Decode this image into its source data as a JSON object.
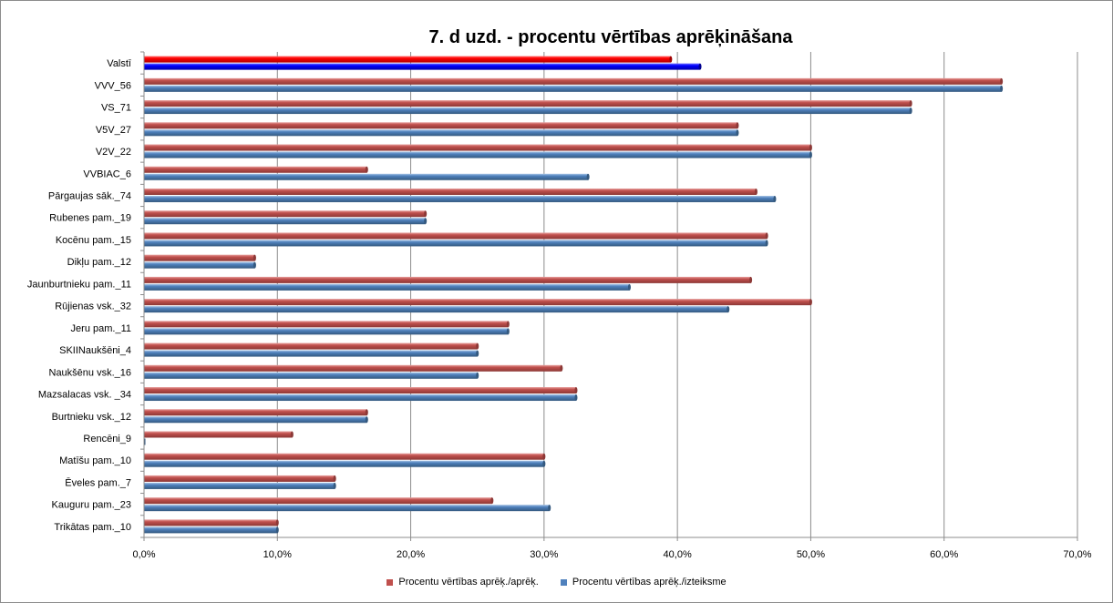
{
  "chart_data": {
    "type": "bar",
    "orientation": "horizontal",
    "title": "7. d uzd. - procentu vērtības aprēķināšana",
    "xlabel": "",
    "ylabel": "",
    "xlim": [
      0,
      70
    ],
    "x_ticks": [
      "0,0%",
      "10,0%",
      "20,0%",
      "30,0%",
      "40,0%",
      "50,0%",
      "60,0%",
      "70,0%"
    ],
    "grid": "vertical",
    "legend_position": "bottom",
    "categories": [
      "Valstī",
      "VVV_56",
      "VS_71",
      "V5V_27",
      "V2V_22",
      "VVBIAC_6",
      "Pārgaujas sāk._74",
      "Rubenes pam._19",
      "Kocēnu pam._15",
      "Dikļu pam._12",
      "Jaunburtnieku pam._11",
      "Rūjienas vsk._32",
      "Jeru pam._11",
      "SKIINaukšēni_4",
      "Naukšēnu vsk._16",
      "Mazsalacas vsk. _34",
      "Burtnieku vsk._12",
      "Rencēni_9",
      "Matīšu pam._10",
      "Ēveles pam._7",
      "Kauguru pam._23",
      "Trikātas pam._10"
    ],
    "series": [
      {
        "name": "Procentu vērtības aprēķ./aprēķ.",
        "color": "#c0504d",
        "highlight_color": "#ff0000",
        "values": [
          39.5,
          64.3,
          57.5,
          44.5,
          50.0,
          16.7,
          45.9,
          21.1,
          46.7,
          8.3,
          45.5,
          50.0,
          27.3,
          25.0,
          31.3,
          32.4,
          16.7,
          11.1,
          30.0,
          14.3,
          26.1,
          10.0
        ]
      },
      {
        "name": "Procentu vērtības aprēķ./izteiksme",
        "color": "#4f81bd",
        "highlight_color": "#0000ff",
        "values": [
          41.7,
          64.3,
          57.5,
          44.5,
          50.0,
          33.3,
          47.3,
          21.1,
          46.7,
          8.3,
          36.4,
          43.8,
          27.3,
          25.0,
          25.0,
          32.4,
          16.7,
          0.0,
          30.0,
          14.3,
          30.4,
          10.0
        ]
      }
    ]
  }
}
